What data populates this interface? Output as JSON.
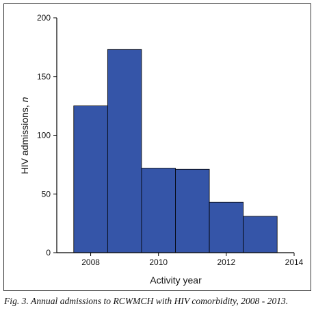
{
  "chart_data": {
    "type": "bar",
    "title": "",
    "xlabel": "Activity year",
    "ylabel_main": "HIV admissions, ",
    "ylabel_italic": "n",
    "xlim": [
      2007,
      2014
    ],
    "ylim": [
      0,
      200
    ],
    "x_ticks": [
      2008,
      2010,
      2012,
      2014
    ],
    "y_ticks": [
      0,
      50,
      100,
      150,
      200
    ],
    "categories": [
      "2008",
      "2009",
      "2010",
      "2011",
      "2012",
      "2013"
    ],
    "bin_edges": [
      2007.5,
      2008.5,
      2009.5,
      2010.5,
      2011.5,
      2012.5,
      2013.5
    ],
    "values": [
      125,
      173,
      72,
      71,
      43,
      31
    ],
    "grid": false,
    "bar_color": "#3555a8",
    "bar_edge_color": "#000000"
  },
  "caption": "Fig. 3. Annual admissions to RCWMCH with HIV comorbidity, 2008 - 2013."
}
